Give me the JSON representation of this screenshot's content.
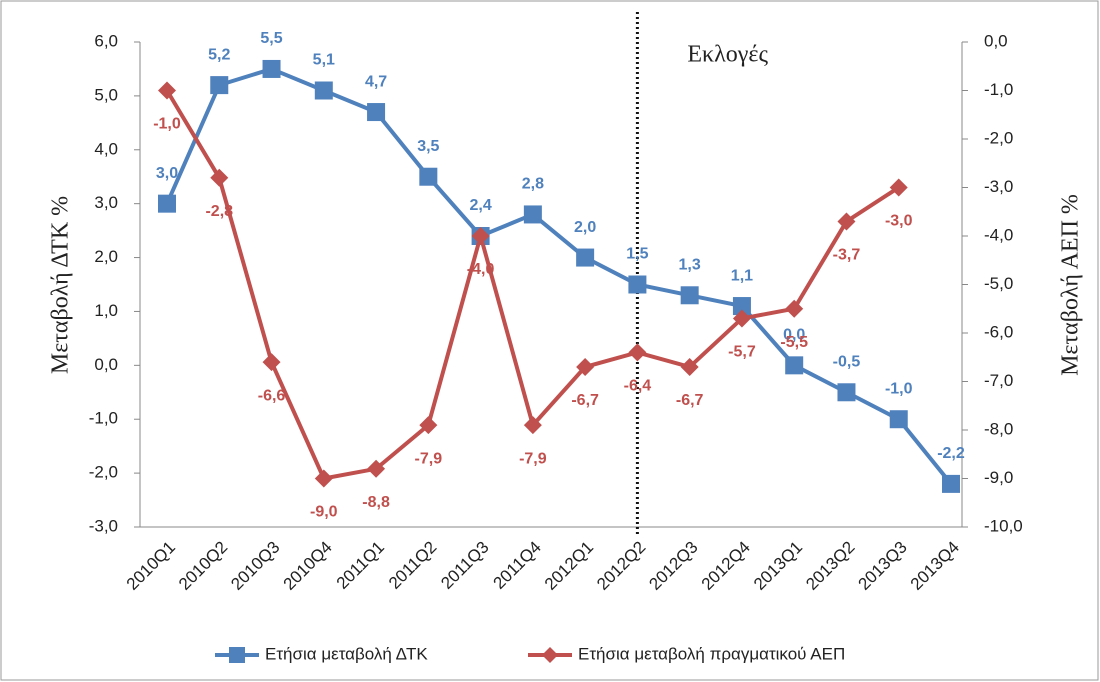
{
  "chart_data": {
    "type": "line",
    "categories": [
      "2010Q1",
      "2010Q2",
      "2010Q3",
      "2010Q4",
      "2011Q1",
      "2011Q2",
      "2011Q3",
      "2011Q4",
      "2012Q1",
      "2012Q2",
      "2012Q3",
      "2012Q4",
      "2013Q1",
      "2013Q2",
      "2013Q3",
      "2013Q4"
    ],
    "series": [
      {
        "name": "Ετήσια μεταβολή ΔΤΚ",
        "color": "#4f81bd",
        "marker": "square",
        "values": [
          3.0,
          5.2,
          5.5,
          5.1,
          4.7,
          3.5,
          2.4,
          2.8,
          2.0,
          1.5,
          1.3,
          1.1,
          0.0,
          -0.5,
          -1.0,
          -2.2
        ],
        "value_labels": [
          "3,0",
          "5,2",
          "5,5",
          "5,1",
          "4,7",
          "3,5",
          "2,4",
          "2,8",
          "2,0",
          "1,5",
          "1,3",
          "1,1",
          "0,0",
          "-0,5",
          "-1,0",
          "-2,2"
        ]
      },
      {
        "name": "Ετήσια μεταβολή πραγματικού ΑΕΠ",
        "color": "#c0504d",
        "marker": "diamond",
        "axis": "y2",
        "values": [
          -1.0,
          -2.8,
          -6.6,
          -9.0,
          -8.8,
          -7.9,
          -4.0,
          -7.9,
          -6.7,
          -6.4,
          -6.7,
          -5.7,
          -5.5,
          -3.7,
          -3.0,
          null
        ],
        "value_labels": [
          "-1,0",
          "-2,8",
          "-6,6",
          "-9,0",
          "-8,8",
          "-7,9",
          "-4,0",
          "-7,9",
          "-6,7",
          "-6,4",
          "-6,7",
          "-5,7",
          "-5,5",
          "-3,7",
          "-3,0",
          null
        ]
      }
    ],
    "ylabel": "Μεταβολή ΔΤΚ  %",
    "y2label": "Μεταβολή ΑΕΠ  %",
    "ylim": [
      -3,
      6
    ],
    "yticks": [
      {
        "value": -3,
        "label": "-3,0"
      },
      {
        "value": -2,
        "label": "-2,0"
      },
      {
        "value": -1,
        "label": "-1,0"
      },
      {
        "value": 0,
        "label": "0,0"
      },
      {
        "value": 1,
        "label": "1,0"
      },
      {
        "value": 2,
        "label": "2,0"
      },
      {
        "value": 3,
        "label": "3,0"
      },
      {
        "value": 4,
        "label": "4,0"
      },
      {
        "value": 5,
        "label": "5,0"
      },
      {
        "value": 6,
        "label": "6,0"
      }
    ],
    "y2lim": [
      -10,
      0
    ],
    "y2ticks": [
      {
        "value": -10,
        "label": "-10,0"
      },
      {
        "value": -9,
        "label": "-9,0"
      },
      {
        "value": -8,
        "label": "-8,0"
      },
      {
        "value": -7,
        "label": "-7,0"
      },
      {
        "value": -6,
        "label": "-6,0"
      },
      {
        "value": -5,
        "label": "-5,0"
      },
      {
        "value": -4,
        "label": "-4,0"
      },
      {
        "value": -3,
        "label": "-3,0"
      },
      {
        "value": -2,
        "label": "-2,0"
      },
      {
        "value": -1,
        "label": "-1,0"
      },
      {
        "value": 0,
        "label": "0,0"
      }
    ],
    "annotation": {
      "text": "Εκλογές",
      "x": "2012Q2"
    },
    "legend": "bottom",
    "grid": false
  }
}
